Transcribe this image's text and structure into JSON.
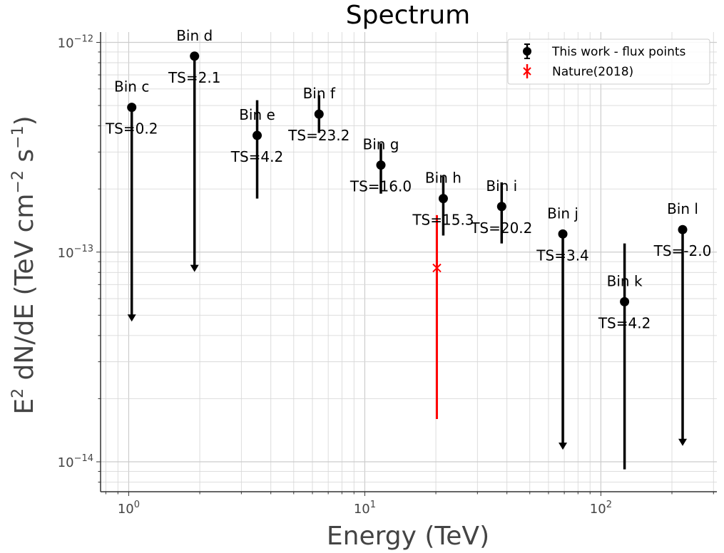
{
  "chart_data": {
    "type": "scatter",
    "title": "Spectrum",
    "xlabel": "Energy (TeV)",
    "ylabel_parts": [
      "E",
      "2",
      " dN/dE (TeV cm",
      "−2",
      " s",
      "−1",
      ")"
    ],
    "x_scale": "log",
    "y_scale": "log",
    "xlim": [
      0.76,
      310
    ],
    "ylim": [
      7.2e-15,
      1.12e-12
    ],
    "grid": true,
    "legend_position": "top-right",
    "x_ticks": [
      {
        "value": 1,
        "base": "10",
        "exp": "0"
      },
      {
        "value": 10,
        "base": "10",
        "exp": "1"
      },
      {
        "value": 100,
        "base": "10",
        "exp": "2"
      }
    ],
    "y_ticks": [
      {
        "value": 1e-12,
        "base": "10",
        "exp": "−12"
      },
      {
        "value": 1e-13,
        "base": "10",
        "exp": "−13"
      },
      {
        "value": 1e-14,
        "base": "10",
        "exp": "−14"
      }
    ],
    "series": [
      {
        "name": "This work - flux points",
        "color": "#000000",
        "marker": "circle",
        "points": [
          {
            "label": "Bin c",
            "ts": "TS=0.2",
            "x": 1.03,
            "y": 4.9e-13,
            "y_lower": 4.7e-14,
            "y_upper": 4.9e-13,
            "upper_limit": true
          },
          {
            "label": "Bin d",
            "ts": "TS=2.1",
            "x": 1.9,
            "y": 8.6e-13,
            "y_lower": 8.1e-14,
            "y_upper": 8.6e-13,
            "upper_limit": true
          },
          {
            "label": "Bin e",
            "ts": "TS=4.2",
            "x": 3.5,
            "y": 3.6e-13,
            "y_lower": 1.8e-13,
            "y_upper": 5.3e-13,
            "upper_limit": false
          },
          {
            "label": "Bin f",
            "ts": "TS=23.2",
            "x": 6.4,
            "y": 4.55e-13,
            "y_lower": 3.7e-13,
            "y_upper": 5.6e-13,
            "upper_limit": false
          },
          {
            "label": "Bin g",
            "ts": "TS=16.0",
            "x": 11.7,
            "y": 2.6e-13,
            "y_lower": 1.9e-13,
            "y_upper": 3.3e-13,
            "upper_limit": false
          },
          {
            "label": "Bin h",
            "ts": "TS=15.3",
            "x": 21.5,
            "y": 1.8e-13,
            "y_lower": 1.2e-13,
            "y_upper": 2.3e-13,
            "upper_limit": false
          },
          {
            "label": "Bin i",
            "ts": "TS=20.2",
            "x": 38,
            "y": 1.65e-13,
            "y_lower": 1.1e-13,
            "y_upper": 2.15e-13,
            "upper_limit": false
          },
          {
            "label": "Bin j",
            "ts": "TS=3.4",
            "x": 69,
            "y": 1.22e-13,
            "y_lower": 1.15e-14,
            "y_upper": 1.22e-13,
            "upper_limit": true
          },
          {
            "label": "Bin k",
            "ts": "TS=4.2",
            "x": 126,
            "y": 5.8e-14,
            "y_lower": 9.2e-15,
            "y_upper": 1.1e-13,
            "upper_limit": false
          },
          {
            "label": "Bin l",
            "ts": "TS=-2.0",
            "x": 222,
            "y": 1.28e-13,
            "y_lower": 1.2e-14,
            "y_upper": 1.28e-13,
            "upper_limit": true
          }
        ]
      },
      {
        "name": "Nature(2018)",
        "color": "#ff0000",
        "marker": "x",
        "points": [
          {
            "x": 20.2,
            "y": 8.4e-14,
            "y_lower": 1.6e-14,
            "y_upper": 1.5e-13
          }
        ]
      }
    ]
  }
}
